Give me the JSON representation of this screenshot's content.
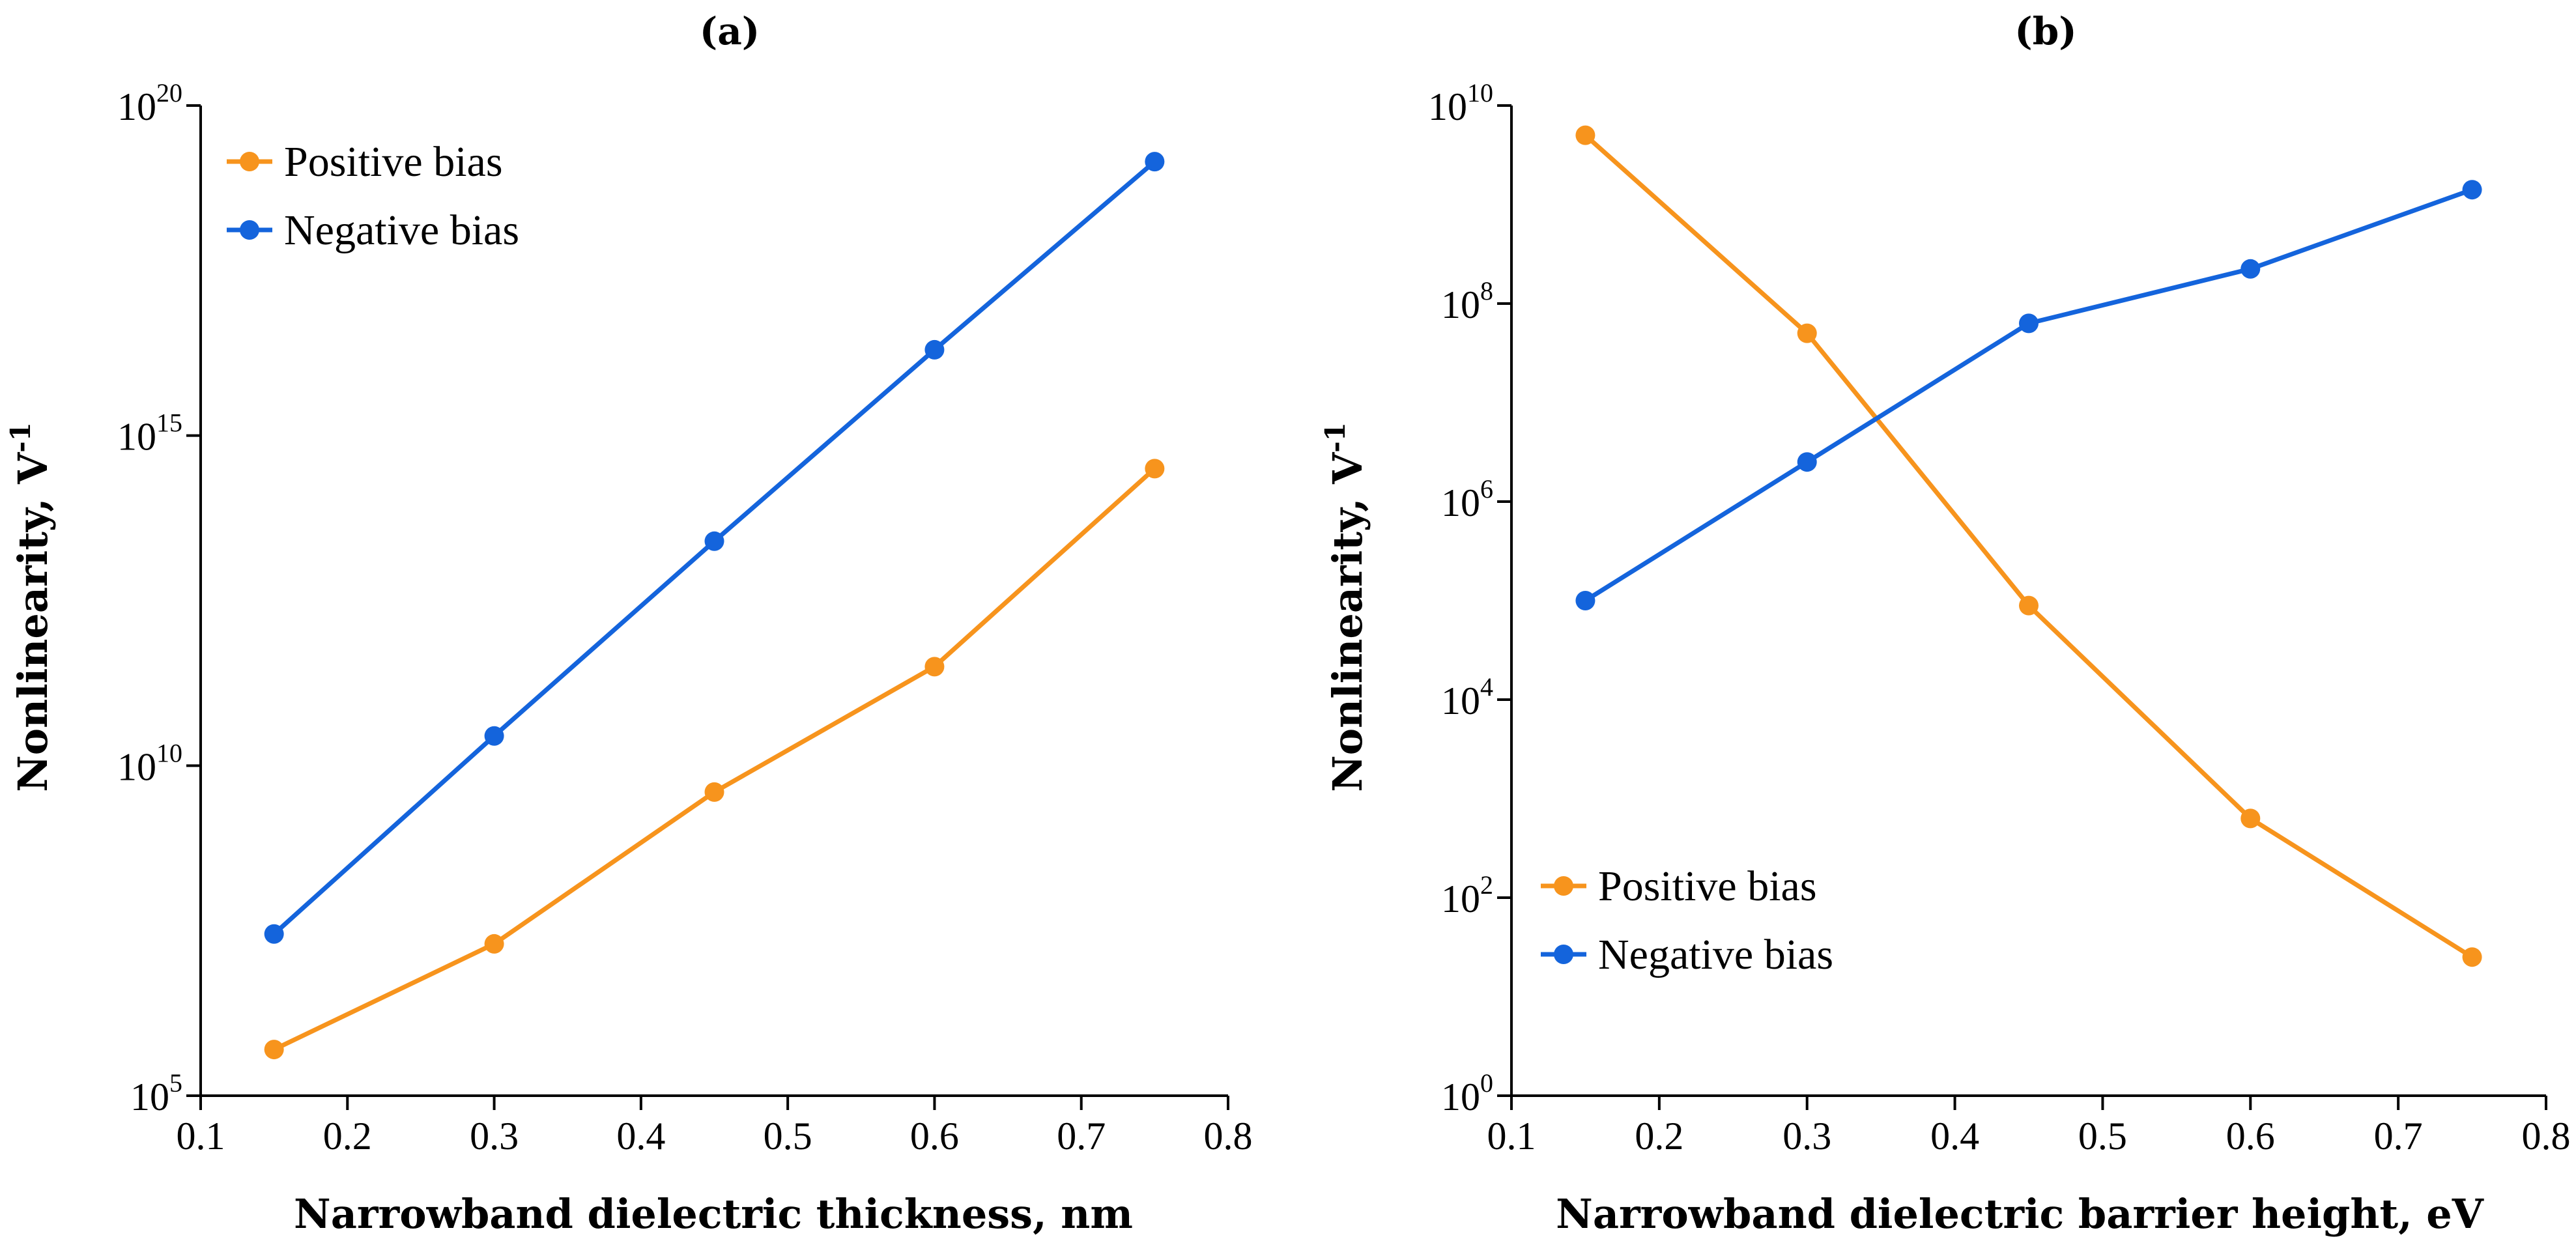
{
  "chart_data": [
    {
      "panel": "(a)",
      "type": "line",
      "xscale": "linear",
      "yscale": "log",
      "xlabel": "Narrowband dielectric thickness, nm",
      "ylabel_main": "Nonlinearity, V",
      "ylabel_sup": "-1",
      "xlim": [
        0.1,
        0.8
      ],
      "xticks": [
        0.1,
        0.2,
        0.3,
        0.4,
        0.5,
        0.6,
        0.7,
        0.8
      ],
      "ylim_exp": [
        5,
        20
      ],
      "yticks": [
        {
          "base": "10",
          "exp": "5",
          "value_exp": 5
        },
        {
          "base": "10",
          "exp": "10",
          "value_exp": 10
        },
        {
          "base": "10",
          "exp": "15",
          "value_exp": 15
        },
        {
          "base": "10",
          "exp": "20",
          "value_exp": 20
        }
      ],
      "legend_position": "top-left",
      "series": [
        {
          "name": "Positive bias",
          "color": "#F7941D",
          "x": [
            0.15,
            0.3,
            0.45,
            0.6,
            0.75
          ],
          "y_log10": [
            5.7,
            7.3,
            9.6,
            11.5,
            14.5
          ]
        },
        {
          "name": "Negative bias",
          "color": "#1464DC",
          "x": [
            0.15,
            0.3,
            0.45,
            0.6,
            0.75
          ],
          "y_log10": [
            7.45,
            10.45,
            13.4,
            16.3,
            19.15
          ]
        }
      ]
    },
    {
      "panel": "(b)",
      "type": "line",
      "xscale": "linear",
      "yscale": "log",
      "xlabel": "Narrowband dielectric barrier height, eV",
      "ylabel_main": "Nonlinearity, V",
      "ylabel_sup": "-1",
      "xlim": [
        0.1,
        0.8
      ],
      "xticks": [
        0.1,
        0.2,
        0.3,
        0.4,
        0.5,
        0.6,
        0.7,
        0.8
      ],
      "ylim_exp": [
        0,
        10
      ],
      "yticks": [
        {
          "base": "10",
          "exp": "0",
          "value_exp": 0
        },
        {
          "base": "10",
          "exp": "2",
          "value_exp": 2
        },
        {
          "base": "10",
          "exp": "4",
          "value_exp": 4
        },
        {
          "base": "10",
          "exp": "6",
          "value_exp": 6
        },
        {
          "base": "10",
          "exp": "8",
          "value_exp": 8
        },
        {
          "base": "10",
          "exp": "10",
          "value_exp": 10
        }
      ],
      "legend_position": "bottom-left",
      "series": [
        {
          "name": "Positive bias",
          "color": "#F7941D",
          "x": [
            0.15,
            0.3,
            0.45,
            0.6,
            0.75
          ],
          "y_log10": [
            9.7,
            7.7,
            4.95,
            2.8,
            1.4
          ]
        },
        {
          "name": "Negative bias",
          "color": "#1464DC",
          "x": [
            0.15,
            0.3,
            0.45,
            0.6,
            0.75
          ],
          "y_log10": [
            5.0,
            6.4,
            7.8,
            8.35,
            9.15
          ]
        }
      ]
    }
  ]
}
